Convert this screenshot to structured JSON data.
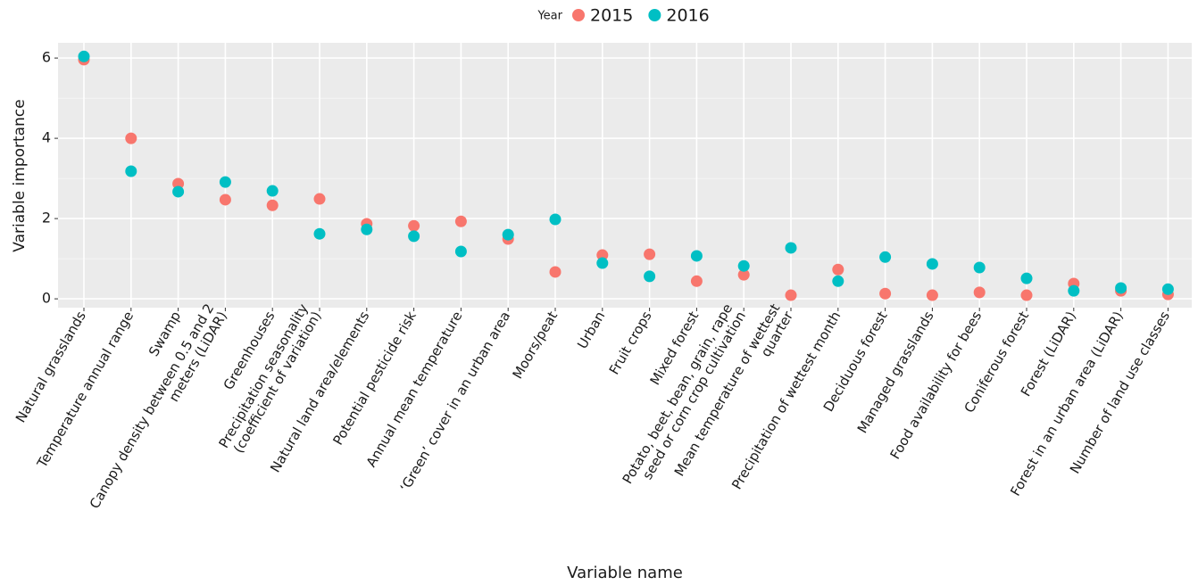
{
  "chart_data": {
    "type": "scatter",
    "xlabel": "Variable name",
    "ylabel": "Variable importance",
    "legend_title": "Year",
    "legend_position": "top",
    "categories": [
      "Natural grasslands",
      "Temperature annual range",
      "Swamp",
      "Canopy density between 0.5 and 2\nmeters (LiDAR)",
      "Greenhouses",
      "Precipitation seasonality\n(coefficient of variation)",
      "Natural land area/elements",
      "Potential pesticide risk",
      "Annual mean temperature",
      "‘Green’ cover in an urban area",
      "Moors/peat",
      "Urban",
      "Fruit crops",
      "Mixed forest",
      "Potato, beet, bean, grain, rape\nseed or corn crop cultivation",
      "Mean temperature of wettest\nquarter",
      "Precipitation of wettest month",
      "Deciduous forest",
      "Managed grasslands",
      "Food availability for bees",
      "Coniferous forest",
      "Forest (LiDAR)",
      "Forest in an urban area (LiDAR)",
      "Number of land use classes"
    ],
    "series": [
      {
        "name": "2015",
        "color": "#F8766D",
        "values": [
          5.96,
          4.0,
          2.87,
          2.47,
          2.33,
          2.49,
          1.87,
          1.82,
          1.93,
          1.49,
          0.67,
          1.09,
          1.11,
          0.44,
          0.6,
          0.09,
          0.73,
          0.13,
          0.09,
          0.16,
          0.09,
          0.38,
          0.2,
          0.11
        ]
      },
      {
        "name": "2016",
        "color": "#00BFC4",
        "values": [
          6.04,
          3.18,
          2.67,
          2.91,
          2.69,
          1.62,
          1.73,
          1.56,
          1.18,
          1.6,
          1.98,
          0.89,
          0.56,
          1.07,
          0.82,
          1.27,
          0.44,
          1.04,
          0.87,
          0.78,
          0.51,
          0.2,
          0.27,
          0.24
        ]
      }
    ],
    "ylim": [
      -0.22,
      6.38
    ],
    "yticks": [
      0,
      2,
      4,
      6
    ],
    "minor_yticks": [
      1,
      3,
      5
    ],
    "grid": true
  }
}
